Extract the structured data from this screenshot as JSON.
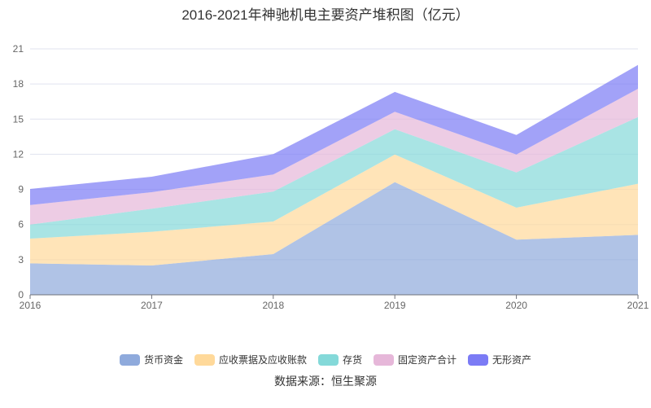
{
  "chart_data": {
    "type": "area",
    "stacked": true,
    "title": "2016-2021年神驰机电主要资产堆积图（亿元）",
    "xlabel": "",
    "ylabel": "",
    "categories": [
      "2016",
      "2017",
      "2018",
      "2019",
      "2020",
      "2021"
    ],
    "ylim": [
      0,
      21
    ],
    "yticks": [
      0,
      3,
      6,
      9,
      12,
      15,
      18,
      21
    ],
    "grid": true,
    "legend_position": "bottom",
    "series": [
      {
        "name": "货币资金",
        "color": "#8faadc",
        "values": [
          2.69,
          2.5,
          3.48,
          9.62,
          4.71,
          5.12
        ]
      },
      {
        "name": "应收票据及应收账款",
        "color": "#ffd99a",
        "values": [
          2.11,
          2.88,
          2.78,
          2.36,
          2.73,
          4.36
        ]
      },
      {
        "name": "存货",
        "color": "#84d9d9",
        "values": [
          1.2,
          1.97,
          2.55,
          2.16,
          3.01,
          5.7
        ]
      },
      {
        "name": "固定资产合计",
        "color": "#e6b7d9",
        "values": [
          1.67,
          1.41,
          1.46,
          1.49,
          1.53,
          2.41
        ]
      },
      {
        "name": "无形资产",
        "color": "#7b7bf5",
        "values": [
          1.37,
          1.32,
          1.74,
          1.69,
          1.67,
          2.04
        ]
      }
    ],
    "source": "数据来源：恒生聚源"
  }
}
